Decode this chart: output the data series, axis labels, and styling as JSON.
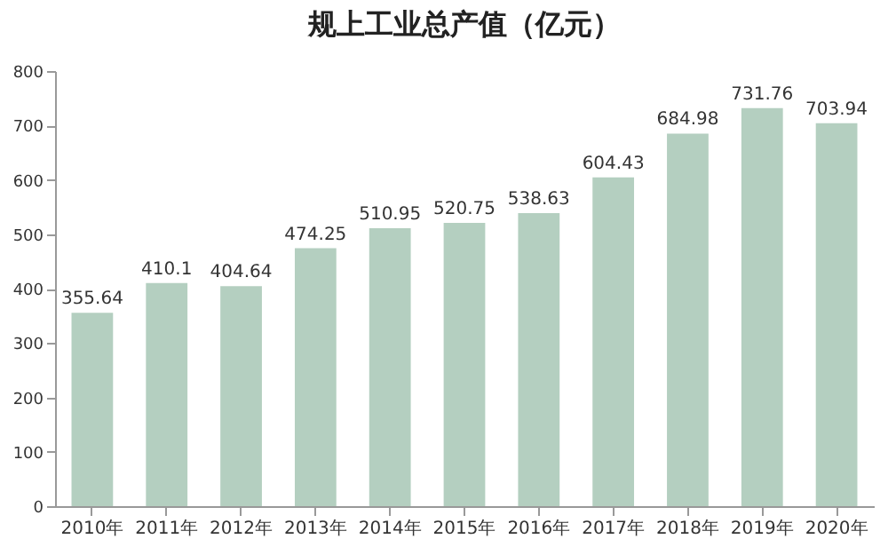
{
  "chart_data": {
    "type": "bar",
    "title": "规上工业总产值（亿元）",
    "categories": [
      "2010年",
      "2011年",
      "2012年",
      "2013年",
      "2014年",
      "2015年",
      "2016年",
      "2017年",
      "2018年",
      "2019年",
      "2020年"
    ],
    "values": [
      355.64,
      410.1,
      404.64,
      474.25,
      510.95,
      520.75,
      538.63,
      604.43,
      684.98,
      731.76,
      703.94
    ],
    "color": "#b4cfc0",
    "ylim": [
      0,
      800
    ],
    "yticks": [
      0,
      100,
      200,
      300,
      400,
      500,
      600,
      700,
      800
    ],
    "data_labels": true,
    "grid": false
  }
}
